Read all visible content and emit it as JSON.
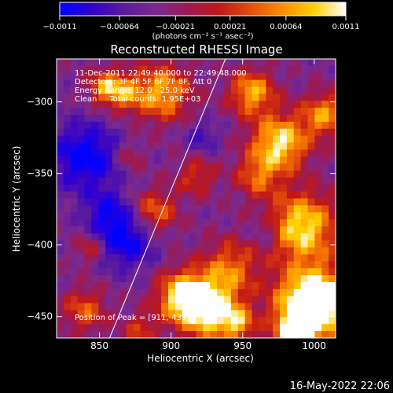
{
  "chart_data": {
    "type": "heatmap",
    "title": "Reconstructed RHESSI Image",
    "xlabel": "Heliocentric X (arcsec)",
    "ylabel": "Heliocentric Y (arcsec)",
    "xlim": [
      820,
      1015
    ],
    "ylim": [
      -465,
      -270
    ],
    "x_ticks": [
      850,
      900,
      950,
      1000
    ],
    "y_ticks": [
      -300,
      -350,
      -400,
      -450
    ],
    "x_tick_labels": [
      "850",
      "900",
      "950",
      "1000"
    ],
    "y_tick_labels": [
      "−300",
      "−350",
      "−400",
      "−450"
    ],
    "colorbar": {
      "min": -0.0011,
      "max": 0.0011,
      "tick_values": [
        -0.0011,
        -0.00064,
        -0.00021,
        0.00021,
        0.00064,
        0.0011
      ],
      "tick_labels": [
        "−0.0011",
        "−0.00064",
        "−0.00021",
        "0.00021",
        "0.00064",
        "0.0011"
      ],
      "units_label": "(photons cm⁻² s⁻¹ asec⁻²)",
      "colors": [
        "#0000ff",
        "#3300cc",
        "#5a1a9e",
        "#7a2a8f",
        "#9a1a55",
        "#c01818",
        "#e34d0a",
        "#ff8c00",
        "#ffd000",
        "#ffffff"
      ]
    },
    "annotations": [
      "11-Dec-2011 22:49:40.000 to 22:49:48.000",
      "Detectors: 3F 4F 5F 6F 7F 8F, Att 0",
      "Energy Range: 12.0 - 25.0 keV",
      "Clean     Total counts: 1.95E+03",
      "Position of Peak = [911,-439]"
    ],
    "limb_line": [
      [
        857,
        -465
      ],
      [
        938,
        -270
      ]
    ],
    "grid": false
  },
  "footer_timestamp": "16-May-2022 22:06"
}
